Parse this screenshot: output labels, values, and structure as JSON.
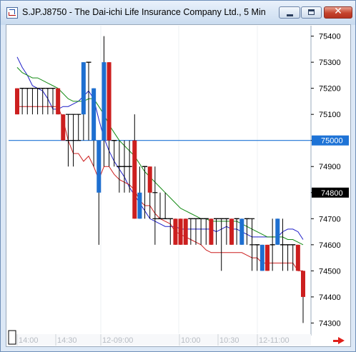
{
  "window": {
    "title": "S.JP.J8750 - The Dai-ichi Life Insurance Company Ltd., 5 Min",
    "close_glyph": "✕"
  },
  "colors": {
    "up_bar": "#cc1f1f",
    "down_bar": "#1e6fd0",
    "neutral_bar": "#000000",
    "ma_fast": "#1e1ec8",
    "ma_slow": "#138a13",
    "step_line": "#cc1f1f",
    "horizontal_line": "#1e73d6"
  },
  "chart_data": {
    "type": "candlestick",
    "title": "S.JP.J8750 - The Dai-ichi Life Insurance Company Ltd., 5 Min",
    "ylim": [
      74260,
      75440
    ],
    "y_ticks": [
      "75400",
      "75300",
      "75200",
      "75100",
      "75000",
      "74900",
      "74800",
      "74700",
      "74600",
      "74500",
      "74400",
      "74300"
    ],
    "x_tick_labels": [
      "14:00",
      "14:30",
      "12-09:00",
      "10:00",
      "10:30",
      "12-11:00"
    ],
    "price_markers": [
      {
        "label": "75000",
        "value": 75000,
        "style": "blue"
      },
      {
        "label": "74800",
        "value": 74800,
        "style": "black"
      }
    ],
    "horizontal_lines": [
      {
        "value": 75000
      }
    ],
    "bars": [
      {
        "o": 75100,
        "h": 75200,
        "l": 75100,
        "c": 75200,
        "color": "red"
      },
      {
        "o": 75200,
        "h": 75200,
        "l": 75100,
        "c": 75200,
        "color": "black"
      },
      {
        "o": 75200,
        "h": 75200,
        "l": 75100,
        "c": 75200,
        "color": "black"
      },
      {
        "o": 75200,
        "h": 75200,
        "l": 75100,
        "c": 75200,
        "color": "black"
      },
      {
        "o": 75200,
        "h": 75200,
        "l": 75100,
        "c": 75200,
        "color": "black"
      },
      {
        "o": 75200,
        "h": 75200,
        "l": 75100,
        "c": 75200,
        "color": "black"
      },
      {
        "o": 75200,
        "h": 75200,
        "l": 75100,
        "c": 75200,
        "color": "black"
      },
      {
        "o": 75200,
        "h": 75200,
        "l": 75100,
        "c": 75200,
        "color": "black"
      },
      {
        "o": 75100,
        "h": 75200,
        "l": 75100,
        "c": 75200,
        "color": "red"
      },
      {
        "o": 75000,
        "h": 75100,
        "l": 75000,
        "c": 75100,
        "color": "red"
      },
      {
        "o": 75000,
        "h": 75100,
        "l": 74900,
        "c": 75100,
        "color": "black"
      },
      {
        "o": 75000,
        "h": 75100,
        "l": 74900,
        "c": 75100,
        "color": "black"
      },
      {
        "o": 75000,
        "h": 75100,
        "l": 75000,
        "c": 75100,
        "color": "black"
      },
      {
        "o": 75100,
        "h": 75300,
        "l": 75000,
        "c": 75300,
        "color": "blue"
      },
      {
        "o": 75300,
        "h": 75300,
        "l": 75000,
        "c": 75300,
        "color": "black"
      },
      {
        "o": 75000,
        "h": 75200,
        "l": 74900,
        "c": 75200,
        "color": "blue"
      },
      {
        "o": 74800,
        "h": 75000,
        "l": 74600,
        "c": 75000,
        "color": "blue"
      },
      {
        "o": 75300,
        "h": 75400,
        "l": 74900,
        "c": 75000,
        "color": "blue"
      },
      {
        "o": 75300,
        "h": 75300,
        "l": 74900,
        "c": 75000,
        "color": "red"
      },
      {
        "o": 75000,
        "h": 75000,
        "l": 74900,
        "c": 75000,
        "color": "black"
      },
      {
        "o": 74900,
        "h": 75000,
        "l": 74800,
        "c": 74900,
        "color": "black"
      },
      {
        "o": 74900,
        "h": 75000,
        "l": 74800,
        "c": 74900,
        "color": "black"
      },
      {
        "o": 74900,
        "h": 75000,
        "l": 74800,
        "c": 74900,
        "color": "black"
      },
      {
        "o": 75000,
        "h": 75100,
        "l": 74700,
        "c": 74700,
        "color": "red"
      },
      {
        "o": 74800,
        "h": 74900,
        "l": 74700,
        "c": 74700,
        "color": "blue"
      },
      {
        "o": 74900,
        "h": 74900,
        "l": 74700,
        "c": 74900,
        "color": "black"
      },
      {
        "o": 74900,
        "h": 74900,
        "l": 74700,
        "c": 74800,
        "color": "red"
      },
      {
        "o": 74800,
        "h": 74900,
        "l": 74600,
        "c": 74700,
        "color": "black"
      },
      {
        "o": 74700,
        "h": 74800,
        "l": 74700,
        "c": 74700,
        "color": "black"
      },
      {
        "o": 74700,
        "h": 74800,
        "l": 74700,
        "c": 74700,
        "color": "black"
      },
      {
        "o": 74700,
        "h": 74700,
        "l": 74600,
        "c": 74700,
        "color": "black"
      },
      {
        "o": 74700,
        "h": 74700,
        "l": 74600,
        "c": 74600,
        "color": "red"
      },
      {
        "o": 74700,
        "h": 74700,
        "l": 74600,
        "c": 74600,
        "color": "red"
      },
      {
        "o": 74700,
        "h": 74700,
        "l": 74600,
        "c": 74600,
        "color": "red"
      },
      {
        "o": 74700,
        "h": 74700,
        "l": 74600,
        "c": 74700,
        "color": "black"
      },
      {
        "o": 74700,
        "h": 74700,
        "l": 74600,
        "c": 74700,
        "color": "black"
      },
      {
        "o": 74700,
        "h": 74700,
        "l": 74600,
        "c": 74700,
        "color": "black"
      },
      {
        "o": 74700,
        "h": 74700,
        "l": 74600,
        "c": 74700,
        "color": "black"
      },
      {
        "o": 74700,
        "h": 74700,
        "l": 74600,
        "c": 74600,
        "color": "red"
      },
      {
        "o": 74700,
        "h": 74700,
        "l": 74600,
        "c": 74700,
        "color": "black"
      },
      {
        "o": 74700,
        "h": 74700,
        "l": 74500,
        "c": 74700,
        "color": "black"
      },
      {
        "o": 74700,
        "h": 74700,
        "l": 74600,
        "c": 74700,
        "color": "black"
      },
      {
        "o": 74700,
        "h": 74700,
        "l": 74600,
        "c": 74600,
        "color": "red"
      },
      {
        "o": 74700,
        "h": 74700,
        "l": 74600,
        "c": 74700,
        "color": "black"
      },
      {
        "o": 74600,
        "h": 74700,
        "l": 74600,
        "c": 74700,
        "color": "blue"
      },
      {
        "o": 74700,
        "h": 74700,
        "l": 74600,
        "c": 74700,
        "color": "black"
      },
      {
        "o": 74600,
        "h": 74700,
        "l": 74500,
        "c": 74700,
        "color": "black"
      },
      {
        "o": 74600,
        "h": 74600,
        "l": 74500,
        "c": 74600,
        "color": "black"
      },
      {
        "o": 74500,
        "h": 74600,
        "l": 74500,
        "c": 74600,
        "color": "blue"
      },
      {
        "o": 74600,
        "h": 74600,
        "l": 74500,
        "c": 74500,
        "color": "red"
      },
      {
        "o": 74600,
        "h": 74700,
        "l": 74500,
        "c": 74600,
        "color": "black"
      },
      {
        "o": 74600,
        "h": 74700,
        "l": 74600,
        "c": 74700,
        "color": "blue"
      },
      {
        "o": 74600,
        "h": 74700,
        "l": 74500,
        "c": 74600,
        "color": "black"
      },
      {
        "o": 74600,
        "h": 74600,
        "l": 74500,
        "c": 74600,
        "color": "black"
      },
      {
        "o": 74600,
        "h": 74600,
        "l": 74500,
        "c": 74600,
        "color": "black"
      },
      {
        "o": 74600,
        "h": 74600,
        "l": 74500,
        "c": 74500,
        "color": "red"
      },
      {
        "o": 74500,
        "h": 74500,
        "l": 74300,
        "c": 74400,
        "color": "red"
      }
    ],
    "series": [
      {
        "color": "blue",
        "values": [
          75320,
          75280,
          75250,
          75210,
          75200,
          75190,
          75160,
          75120,
          75120,
          75130,
          75130,
          75140,
          75150,
          75170,
          75190,
          75160,
          75080,
          75010,
          74960,
          74920,
          74890,
          74860,
          74820,
          74790,
          74760,
          74730,
          74700,
          74690,
          74680,
          74670,
          74670,
          74670,
          74660,
          74660,
          74660,
          74660,
          74660,
          74660,
          74660,
          74650,
          74660,
          74670,
          74660,
          74660,
          74650,
          74640,
          74630,
          74630,
          74630,
          74630,
          74630,
          74630,
          74650,
          74660,
          74660,
          74650,
          74620
        ]
      },
      {
        "color": "green",
        "values": [
          75280,
          75260,
          75250,
          75240,
          75240,
          75230,
          75220,
          75210,
          75200,
          75180,
          75160,
          75150,
          75150,
          75150,
          75160,
          75160,
          75130,
          75100,
          75060,
          75030,
          75000,
          74980,
          74960,
          74940,
          74910,
          74880,
          74860,
          74840,
          74820,
          74800,
          74780,
          74760,
          74740,
          74730,
          74720,
          74710,
          74700,
          74700,
          74690,
          74690,
          74690,
          74690,
          74690,
          74690,
          74680,
          74670,
          74660,
          74650,
          74640,
          74630,
          74630,
          74630,
          74630,
          74620,
          74620,
          74610,
          74600
        ]
      },
      {
        "color": "red",
        "values": [
          75130,
          75130,
          75130,
          75130,
          75130,
          75130,
          75130,
          75130,
          75130,
          75080,
          75000,
          74950,
          74950,
          74920,
          74940,
          74900,
          74850,
          74900,
          74900,
          74870,
          74850,
          74840,
          74830,
          74810,
          74770,
          74750,
          74750,
          74720,
          74700,
          74690,
          74680,
          74650,
          74640,
          74630,
          74620,
          74610,
          74600,
          74580,
          74570,
          74570,
          74570,
          74570,
          74570,
          74570,
          74570,
          74560,
          74550,
          74550,
          74530,
          74530,
          74530,
          74530,
          74530,
          74530,
          74530,
          74500,
          74500
        ]
      }
    ]
  }
}
